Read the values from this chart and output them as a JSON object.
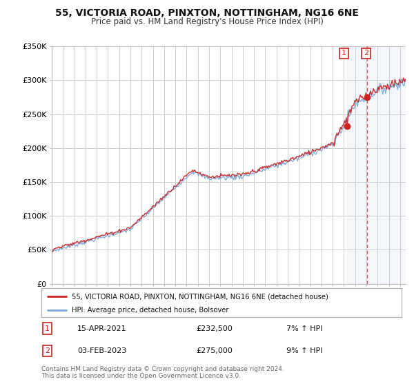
{
  "title": "55, VICTORIA ROAD, PINXTON, NOTTINGHAM, NG16 6NE",
  "subtitle": "Price paid vs. HM Land Registry's House Price Index (HPI)",
  "ylim": [
    0,
    350000
  ],
  "yticks": [
    0,
    50000,
    100000,
    150000,
    200000,
    250000,
    300000,
    350000
  ],
  "ytick_labels": [
    "£0",
    "£50K",
    "£100K",
    "£150K",
    "£200K",
    "£250K",
    "£300K",
    "£350K"
  ],
  "hpi_color": "#7aaadd",
  "price_color": "#cc2222",
  "sale1_date": "15-APR-2021",
  "sale1_price": 232500,
  "sale1_pct": "7%",
  "sale2_date": "03-FEB-2023",
  "sale2_price": 275000,
  "sale2_pct": "9%",
  "legend_label1": "55, VICTORIA ROAD, PINXTON, NOTTINGHAM, NG16 6NE (detached house)",
  "legend_label2": "HPI: Average price, detached house, Bolsover",
  "footnote": "Contains HM Land Registry data © Crown copyright and database right 2024.\nThis data is licensed under the Open Government Licence v3.0.",
  "background_color": "#ffffff",
  "grid_color": "#cccccc",
  "sale1_t": 2021.29,
  "sale2_t": 2023.09
}
